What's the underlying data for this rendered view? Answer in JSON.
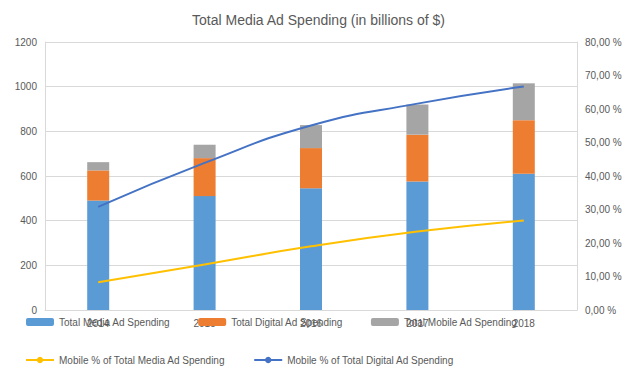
{
  "chart_data": {
    "type": "bar",
    "title": "Total Media Ad Spending (in billions of $)",
    "categories": [
      "2014",
      "2015",
      "2016",
      "2017",
      "2018"
    ],
    "series": [
      {
        "name": "Total Media Ad Spending",
        "type": "bar",
        "color": "#5B9BD5",
        "values": [
          490,
          510,
          545,
          575,
          610
        ]
      },
      {
        "name": "Total Digital Ad Spending",
        "type": "bar",
        "color": "#ED7D31",
        "values": [
          135,
          170,
          180,
          210,
          240
        ]
      },
      {
        "name": "Total Mobile Ad Spending",
        "type": "bar",
        "color": "#A5A5A5",
        "values": [
          37,
          60,
          103,
          135,
          165
        ]
      },
      {
        "name": "Mobile % of Total Media Ad Spending",
        "type": "line",
        "axis": "y2",
        "color": "#FFC000",
        "marker": "none",
        "line_style": "solid",
        "values": [
          8.3,
          13.6,
          19.0,
          23.4,
          26.7
        ]
      },
      {
        "name": "Mobile % of Total Digital Ad Spending",
        "type": "line",
        "axis": "y2",
        "color": "#4472C4",
        "marker": "none",
        "line_style": "solid",
        "values": [
          30.8,
          43.9,
          55.1,
          61.6,
          66.7
        ]
      }
    ],
    "ylim": [
      0,
      1200
    ],
    "yticks": [
      0,
      200,
      400,
      600,
      800,
      1000,
      1200
    ],
    "y2lim": [
      0,
      80
    ],
    "y2ticks": [
      {
        "value": 0,
        "label": "0,00 %"
      },
      {
        "value": 10,
        "label": "10,00 %"
      },
      {
        "value": 20,
        "label": "20,00 %"
      },
      {
        "value": 30,
        "label": "30,00 %"
      },
      {
        "value": 40,
        "label": "40,00 %"
      },
      {
        "value": 50,
        "label": "50,00 %"
      },
      {
        "value": 60,
        "label": "60,00 %"
      },
      {
        "value": 70,
        "label": "70,00 %"
      },
      {
        "value": 80,
        "label": "80,00 %"
      }
    ],
    "stacked": true,
    "grid": true,
    "legend": "bottom"
  }
}
